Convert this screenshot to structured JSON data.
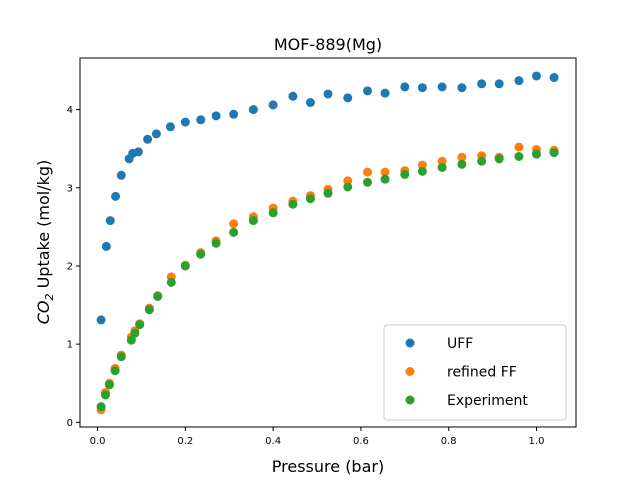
{
  "chart_data": {
    "type": "scatter",
    "title": "MOF-889(Mg)",
    "xlabel": "Pressure (bar)",
    "ylabel_main": "CO",
    "ylabel_sub": "2",
    "ylabel_rest": " Uptake (mol/kg)",
    "xlim": [
      -0.04,
      1.09
    ],
    "ylim": [
      -0.06,
      4.66
    ],
    "xticks": [
      0,
      0.2,
      0.4,
      0.6,
      0.8,
      1.0
    ],
    "xtick_labels": [
      "0.0",
      "0.2",
      "0.4",
      "0.6",
      "0.8",
      "1.0"
    ],
    "yticks": [
      0,
      1,
      2,
      3,
      4
    ],
    "ytick_labels": [
      "0",
      "1",
      "2",
      "3",
      "4"
    ],
    "grid": false,
    "legend_position": "bottom-right",
    "series": [
      {
        "name": "UFF",
        "color": "#1f77b4",
        "x": [
          0.008,
          0.02,
          0.029,
          0.041,
          0.054,
          0.072,
          0.08,
          0.093,
          0.114,
          0.134,
          0.166,
          0.2,
          0.235,
          0.27,
          0.31,
          0.355,
          0.4,
          0.445,
          0.485,
          0.525,
          0.57,
          0.615,
          0.655,
          0.7,
          0.74,
          0.785,
          0.83,
          0.875,
          0.915,
          0.96,
          1.0,
          1.04
        ],
        "y": [
          1.31,
          2.25,
          2.58,
          2.89,
          3.16,
          3.37,
          3.44,
          3.46,
          3.62,
          3.69,
          3.78,
          3.84,
          3.87,
          3.92,
          3.94,
          4.0,
          4.06,
          4.17,
          4.09,
          4.2,
          4.15,
          4.24,
          4.21,
          4.29,
          4.28,
          4.29,
          4.28,
          4.33,
          4.33,
          4.37,
          4.43,
          4.41
        ]
      },
      {
        "name": "refined FF",
        "color": "#ff7f0e",
        "x": [
          0.008,
          0.018,
          0.027,
          0.04,
          0.054,
          0.077,
          0.085,
          0.096,
          0.118,
          0.137,
          0.168,
          0.2,
          0.235,
          0.27,
          0.31,
          0.355,
          0.4,
          0.445,
          0.485,
          0.525,
          0.57,
          0.615,
          0.655,
          0.7,
          0.74,
          0.785,
          0.83,
          0.875,
          0.915,
          0.96,
          1.0,
          1.04
        ],
        "y": [
          0.16,
          0.38,
          0.5,
          0.69,
          0.86,
          1.09,
          1.17,
          1.26,
          1.46,
          1.62,
          1.86,
          2.01,
          2.17,
          2.32,
          2.54,
          2.63,
          2.74,
          2.83,
          2.9,
          2.98,
          3.09,
          3.2,
          3.2,
          3.22,
          3.29,
          3.34,
          3.39,
          3.41,
          3.39,
          3.52,
          3.49,
          3.48
        ]
      },
      {
        "name": "Experiment",
        "color": "#2ca02c",
        "x": [
          0.008,
          0.018,
          0.027,
          0.04,
          0.054,
          0.077,
          0.085,
          0.096,
          0.118,
          0.137,
          0.168,
          0.2,
          0.235,
          0.27,
          0.31,
          0.355,
          0.4,
          0.445,
          0.485,
          0.525,
          0.57,
          0.615,
          0.655,
          0.7,
          0.74,
          0.785,
          0.83,
          0.875,
          0.915,
          0.96,
          1.0,
          1.04
        ],
        "y": [
          0.2,
          0.35,
          0.48,
          0.66,
          0.84,
          1.05,
          1.14,
          1.25,
          1.44,
          1.61,
          1.79,
          2.0,
          2.15,
          2.29,
          2.43,
          2.58,
          2.68,
          2.79,
          2.86,
          2.93,
          3.01,
          3.07,
          3.11,
          3.17,
          3.21,
          3.26,
          3.3,
          3.34,
          3.37,
          3.4,
          3.43,
          3.45
        ]
      }
    ]
  }
}
